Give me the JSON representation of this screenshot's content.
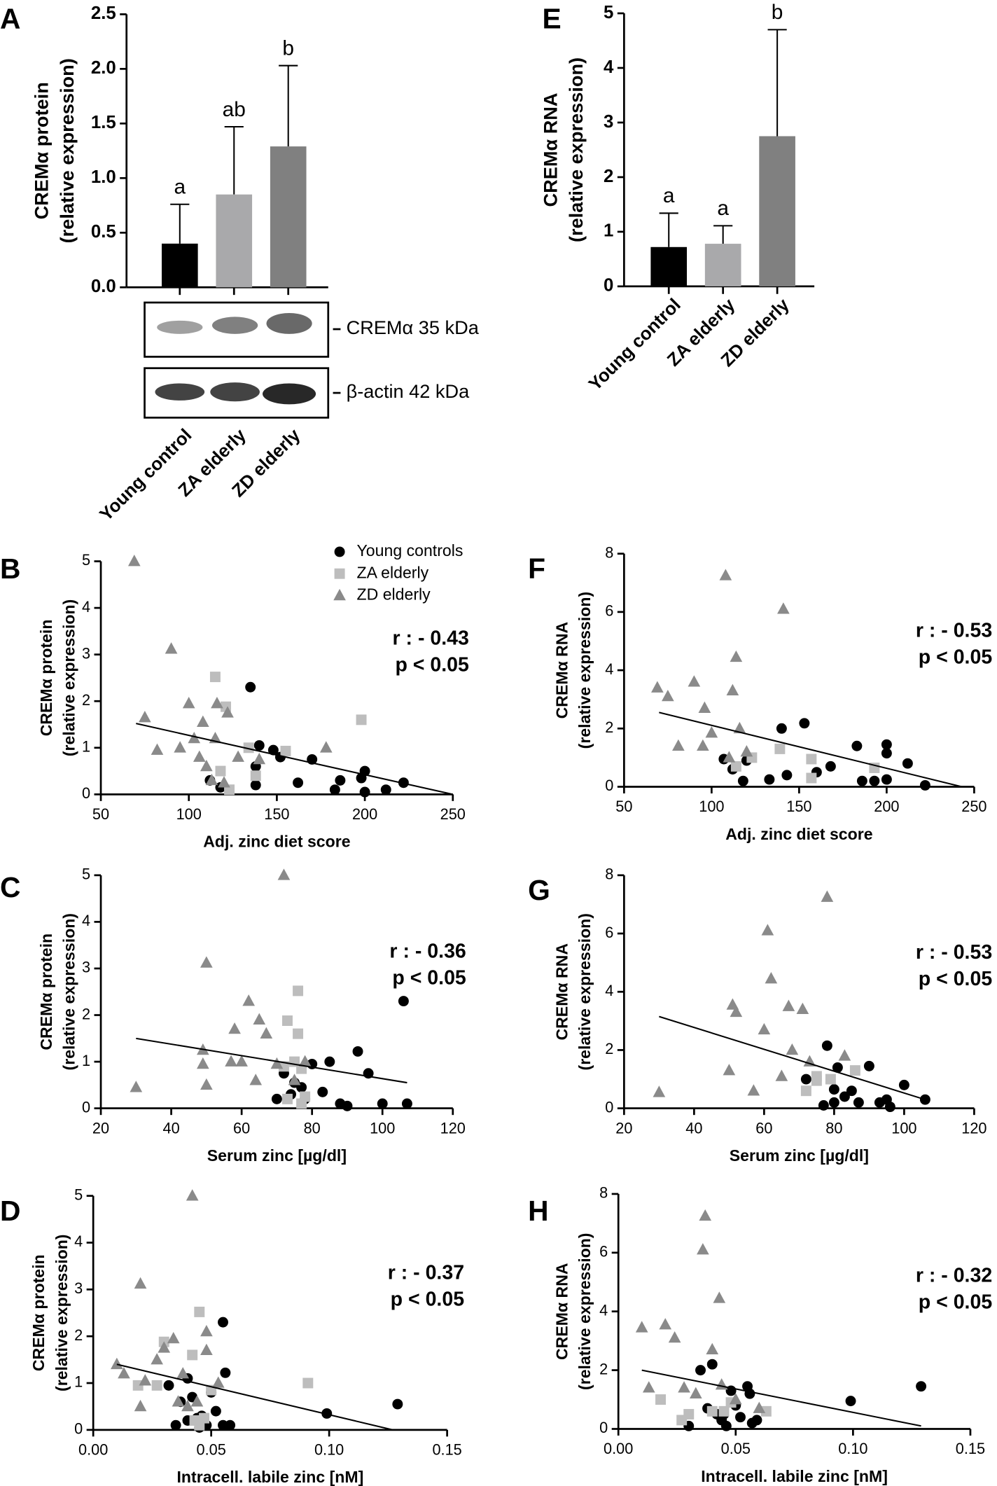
{
  "chart_data": [
    {
      "type": "bar",
      "panel": "A",
      "ylabel": [
        "CREMα protein",
        "(relative expression)"
      ],
      "categories": [
        "Young control",
        "ZA elderly",
        "ZD elderly"
      ],
      "values": [
        0.4,
        0.85,
        1.29
      ],
      "errors": [
        0.36,
        0.62,
        0.74
      ],
      "letters": [
        "a",
        "ab",
        "b"
      ],
      "colors": [
        "#000000",
        "#a9a9ab",
        "#808080"
      ],
      "ylim": [
        0,
        2.5
      ],
      "yticks": [
        {
          "value": 0,
          "label": "0.0"
        },
        {
          "value": 0.5,
          "label": "0.5"
        },
        {
          "value": 1,
          "label": "1.0"
        },
        {
          "value": 1.5,
          "label": "1.5"
        },
        {
          "value": 2,
          "label": "2.0"
        },
        {
          "value": 2.5,
          "label": "2.5"
        }
      ],
      "blot_labels": [
        "CREMα 35 kDa",
        "β-actin 42 kDa"
      ]
    },
    {
      "type": "bar",
      "panel": "E",
      "ylabel": [
        "CREMα RNA",
        "(relative expression)"
      ],
      "categories": [
        "Young control",
        "ZA elderly",
        "ZD elderly"
      ],
      "values": [
        0.72,
        0.78,
        2.75
      ],
      "errors": [
        0.62,
        0.33,
        1.95
      ],
      "letters": [
        "a",
        "a",
        "b"
      ],
      "colors": [
        "#000000",
        "#a9a9ab",
        "#808080"
      ],
      "ylim": [
        0,
        5
      ],
      "yticks": [
        0,
        1,
        2,
        3,
        4,
        5
      ]
    },
    {
      "type": "scatter",
      "panel": "B",
      "ylabel": [
        "CREMα protein",
        "(relative expression)"
      ],
      "xlabel": "Adj. zinc diet score",
      "xlim": [
        50,
        250
      ],
      "xticks": [
        50,
        100,
        150,
        200,
        250
      ],
      "ylim": [
        0,
        5
      ],
      "yticks": [
        0,
        1,
        2,
        3,
        4,
        5
      ],
      "annotations": [
        "r : - 0.43",
        "p < 0.05"
      ],
      "trendline": {
        "x": [
          70,
          250
        ],
        "y": [
          1.52,
          0
        ]
      },
      "series": [
        {
          "name": "Young controls",
          "color": "#000000",
          "marker": "circle",
          "x": [
            135,
            140,
            138,
            138,
            148,
            152,
            162,
            170,
            183,
            186,
            198,
            200,
            200,
            212,
            222,
            118,
            112
          ],
          "y": [
            2.3,
            1.05,
            0.6,
            0.2,
            0.95,
            0.8,
            0.25,
            0.75,
            0.1,
            0.3,
            0.35,
            0.5,
            0.05,
            0.1,
            0.25,
            0.15,
            0.3
          ]
        },
        {
          "name": "ZA elderly",
          "color": "#bdbdbd",
          "marker": "square",
          "x": [
            115,
            121,
            134,
            138,
            155,
            198,
            118,
            123
          ],
          "y": [
            2.52,
            1.88,
            1.0,
            0.4,
            0.93,
            1.6,
            0.5,
            0.1
          ]
        },
        {
          "name": "ZD elderly",
          "color": "#8a8a8a",
          "marker": "triangle",
          "x": [
            69,
            90,
            75,
            82,
            95,
            100,
            103,
            108,
            110,
            115,
            116,
            122,
            120,
            106,
            128,
            178,
            113,
            140
          ],
          "y": [
            5,
            3.12,
            1.65,
            0.95,
            1.0,
            1.95,
            1.2,
            1.55,
            0.6,
            1.2,
            1.95,
            1.75,
            0.25,
            0.8,
            0.8,
            1.0,
            0.3,
            0.75
          ]
        }
      ]
    },
    {
      "type": "scatter",
      "panel": "F",
      "ylabel": [
        "CREMα RNA",
        "(relative expression)"
      ],
      "xlabel": "Adj. zinc diet score",
      "xlim": [
        50,
        250
      ],
      "xticks": [
        50,
        100,
        150,
        200,
        250
      ],
      "ylim": [
        0,
        8
      ],
      "yticks": [
        0,
        2,
        4,
        6,
        8
      ],
      "annotations": [
        "r : - 0.53",
        "p < 0.05"
      ],
      "trendline": {
        "x": [
          70,
          243
        ],
        "y": [
          2.55,
          0
        ]
      },
      "series": [
        {
          "color": "#000000",
          "marker": "circle",
          "x": [
            107,
            112,
            118,
            120,
            122,
            133,
            140,
            143,
            153,
            160,
            168,
            183,
            186,
            193,
            200,
            200,
            200,
            212,
            222
          ],
          "y": [
            0.95,
            0.6,
            0.2,
            0.9,
            1.0,
            0.25,
            2.0,
            0.4,
            2.18,
            0.5,
            0.7,
            1.4,
            0.2,
            0.2,
            1.45,
            1.15,
            0.25,
            0.8,
            0.05
          ]
        },
        {
          "color": "#bdbdbd",
          "marker": "square",
          "x": [
            114,
            123,
            139,
            157,
            193,
            157
          ],
          "y": [
            0.7,
            1.0,
            1.3,
            0.95,
            0.65,
            0.3
          ]
        },
        {
          "color": "#8a8a8a",
          "marker": "triangle",
          "x": [
            69,
            75,
            81,
            90,
            96,
            100,
            108,
            112,
            114,
            116,
            141,
            110,
            120,
            95
          ],
          "y": [
            3.4,
            3.1,
            1.4,
            3.6,
            2.7,
            1.85,
            7.25,
            3.3,
            4.45,
            2.0,
            6.1,
            1.0,
            1.2,
            1.4
          ]
        }
      ]
    },
    {
      "type": "scatter",
      "panel": "C",
      "ylabel": [
        "CREMα protein",
        "(relative expression)"
      ],
      "xlabel": "Serum zinc [µg/dl]",
      "xlim": [
        20,
        120
      ],
      "xticks": [
        20,
        40,
        60,
        80,
        100,
        120
      ],
      "ylim": [
        0,
        5
      ],
      "yticks": [
        0,
        1,
        2,
        3,
        4,
        5
      ],
      "annotations": [
        "r : - 0.36",
        "p < 0.05"
      ],
      "trendline": {
        "x": [
          30,
          107
        ],
        "y": [
          1.5,
          0.55
        ]
      },
      "series": [
        {
          "color": "#000000",
          "marker": "circle",
          "x": [
            106,
            93,
            80,
            85,
            72,
            75,
            77,
            78,
            83,
            88,
            96,
            100,
            107,
            74,
            90,
            70
          ],
          "y": [
            2.3,
            1.22,
            0.95,
            1.0,
            0.75,
            0.55,
            0.45,
            0.2,
            0.35,
            0.1,
            0.75,
            0.1,
            0.1,
            0.3,
            0.05,
            0.2
          ]
        },
        {
          "color": "#bdbdbd",
          "marker": "square",
          "x": [
            76,
            73,
            76,
            72,
            75,
            77,
            73,
            78,
            77
          ],
          "y": [
            2.52,
            1.88,
            1.6,
            0.9,
            1.0,
            0.85,
            0.2,
            0.25,
            0.1
          ]
        },
        {
          "color": "#8a8a8a",
          "marker": "triangle",
          "x": [
            72,
            50,
            30,
            50,
            49,
            49,
            57,
            58,
            60,
            62,
            65,
            67,
            70,
            78,
            75,
            64
          ],
          "y": [
            5,
            3.12,
            0.45,
            0.5,
            0.95,
            1.25,
            1.0,
            1.7,
            1.0,
            2.3,
            1.9,
            1.6,
            0.95,
            1.0,
            0.6,
            0.6
          ]
        }
      ]
    },
    {
      "type": "scatter",
      "panel": "G",
      "ylabel": [
        "CREMα RNA",
        "(relative expression)"
      ],
      "xlabel": "Serum zinc [µg/dl]",
      "xlim": [
        20,
        120
      ],
      "xticks": [
        20,
        40,
        60,
        80,
        100,
        120
      ],
      "ylim": [
        0,
        8
      ],
      "yticks": [
        0,
        2,
        4,
        6,
        8
      ],
      "annotations": [
        "r : - 0.53",
        "p < 0.05"
      ],
      "trendline": {
        "x": [
          30,
          106
        ],
        "y": [
          3.15,
          0.3
        ]
      },
      "series": [
        {
          "color": "#000000",
          "marker": "circle",
          "x": [
            106,
            100,
            95,
            93,
            90,
            87,
            85,
            83,
            81,
            80,
            78,
            77,
            80,
            72,
            96
          ],
          "y": [
            0.3,
            0.8,
            0.3,
            0.2,
            1.45,
            0.2,
            0.6,
            0.4,
            1.4,
            0.65,
            2.15,
            0.1,
            0.2,
            1.0,
            0.05
          ]
        },
        {
          "color": "#bdbdbd",
          "marker": "square",
          "x": [
            72,
            75,
            75,
            86,
            79
          ],
          "y": [
            0.6,
            0.95,
            1.1,
            1.3,
            1.0
          ]
        },
        {
          "color": "#8a8a8a",
          "marker": "triangle",
          "x": [
            78,
            61,
            62,
            51,
            52,
            60,
            67,
            71,
            68,
            73,
            83,
            50,
            57,
            30,
            65
          ],
          "y": [
            7.25,
            6.1,
            4.45,
            3.55,
            3.3,
            2.7,
            3.5,
            3.4,
            2.0,
            1.6,
            1.8,
            1.3,
            0.6,
            0.55,
            1.1
          ]
        }
      ]
    },
    {
      "type": "scatter",
      "panel": "D",
      "ylabel": [
        "CREMα protein",
        "(relative expression)"
      ],
      "xlabel": "Intracell. labile zinc [nM]",
      "xlim": [
        0,
        0.15
      ],
      "xticks": [
        {
          "value": 0,
          "label": "0.00"
        },
        {
          "value": 0.05,
          "label": "0.05"
        },
        {
          "value": 0.1,
          "label": "0.10"
        },
        {
          "value": 0.15,
          "label": "0.15"
        }
      ],
      "ylim": [
        0,
        5
      ],
      "yticks": [
        0,
        1,
        2,
        3,
        4,
        5
      ],
      "annotations": [
        "r : - 0.37",
        "p < 0.05"
      ],
      "trendline": {
        "x": [
          0.01,
          0.127
        ],
        "y": [
          1.4,
          0
        ]
      },
      "series": [
        {
          "color": "#000000",
          "marker": "circle",
          "x": [
            0.032,
            0.035,
            0.037,
            0.04,
            0.04,
            0.042,
            0.044,
            0.046,
            0.048,
            0.05,
            0.055,
            0.056,
            0.055,
            0.058,
            0.045,
            0.099,
            0.129,
            0.052
          ],
          "y": [
            0.95,
            0.1,
            0.6,
            1.1,
            0.2,
            0.7,
            0.25,
            0.3,
            0.1,
            0.8,
            2.3,
            1.22,
            0.1,
            0.1,
            0.05,
            0.35,
            0.55,
            0.4
          ]
        },
        {
          "color": "#bdbdbd",
          "marker": "square",
          "x": [
            0.019,
            0.027,
            0.03,
            0.045,
            0.042,
            0.043,
            0.047,
            0.05,
            0.091,
            0.045
          ],
          "y": [
            0.95,
            0.95,
            1.88,
            2.52,
            1.6,
            0.2,
            0.25,
            0.85,
            1.0,
            0.1
          ]
        },
        {
          "color": "#8a8a8a",
          "marker": "triangle",
          "x": [
            0.042,
            0.02,
            0.01,
            0.013,
            0.02,
            0.027,
            0.03,
            0.034,
            0.038,
            0.04,
            0.048,
            0.048,
            0.053,
            0.044,
            0.036,
            0.022
          ],
          "y": [
            5,
            3.12,
            1.4,
            1.2,
            0.5,
            1.5,
            1.75,
            1.95,
            1.2,
            0.5,
            2.1,
            1.7,
            1.0,
            0.6,
            0.6,
            1.05
          ]
        }
      ]
    },
    {
      "type": "scatter",
      "panel": "H",
      "ylabel": [
        "CREMα RNA",
        "(relative expression)"
      ],
      "xlabel": "Intracell. labile zinc [nM]",
      "xlim": [
        0,
        0.15
      ],
      "xticks": [
        {
          "value": 0,
          "label": "0.00"
        },
        {
          "value": 0.05,
          "label": "0.05"
        },
        {
          "value": 0.1,
          "label": "0.10"
        },
        {
          "value": 0.15,
          "label": "0.15"
        }
      ],
      "ylim": [
        0,
        8
      ],
      "yticks": [
        0,
        2,
        4,
        6,
        8
      ],
      "annotations": [
        "r : - 0.32",
        "p < 0.05"
      ],
      "trendline": {
        "x": [
          0.01,
          0.129
        ],
        "y": [
          2.0,
          0.1
        ]
      },
      "series": [
        {
          "color": "#000000",
          "marker": "circle",
          "x": [
            0.035,
            0.04,
            0.038,
            0.042,
            0.044,
            0.046,
            0.048,
            0.05,
            0.052,
            0.055,
            0.056,
            0.057,
            0.059,
            0.03,
            0.099,
            0.129,
            0.045
          ],
          "y": [
            2.0,
            2.2,
            0.7,
            0.5,
            0.3,
            0.1,
            1.3,
            0.8,
            0.4,
            1.45,
            1.2,
            0.2,
            0.3,
            0.1,
            0.95,
            1.45,
            0.5
          ]
        },
        {
          "color": "#bdbdbd",
          "marker": "square",
          "x": [
            0.018,
            0.027,
            0.03,
            0.04,
            0.045,
            0.048,
            0.063
          ],
          "y": [
            1.0,
            0.3,
            0.5,
            0.6,
            0.6,
            0.9,
            0.6
          ]
        },
        {
          "color": "#8a8a8a",
          "marker": "triangle",
          "x": [
            0.037,
            0.036,
            0.043,
            0.01,
            0.02,
            0.024,
            0.04,
            0.013,
            0.028,
            0.044,
            0.05,
            0.06,
            0.033
          ],
          "y": [
            7.25,
            6.1,
            4.45,
            3.45,
            3.55,
            3.1,
            2.7,
            1.4,
            1.4,
            1.5,
            1.0,
            0.7,
            1.2
          ]
        }
      ]
    }
  ]
}
